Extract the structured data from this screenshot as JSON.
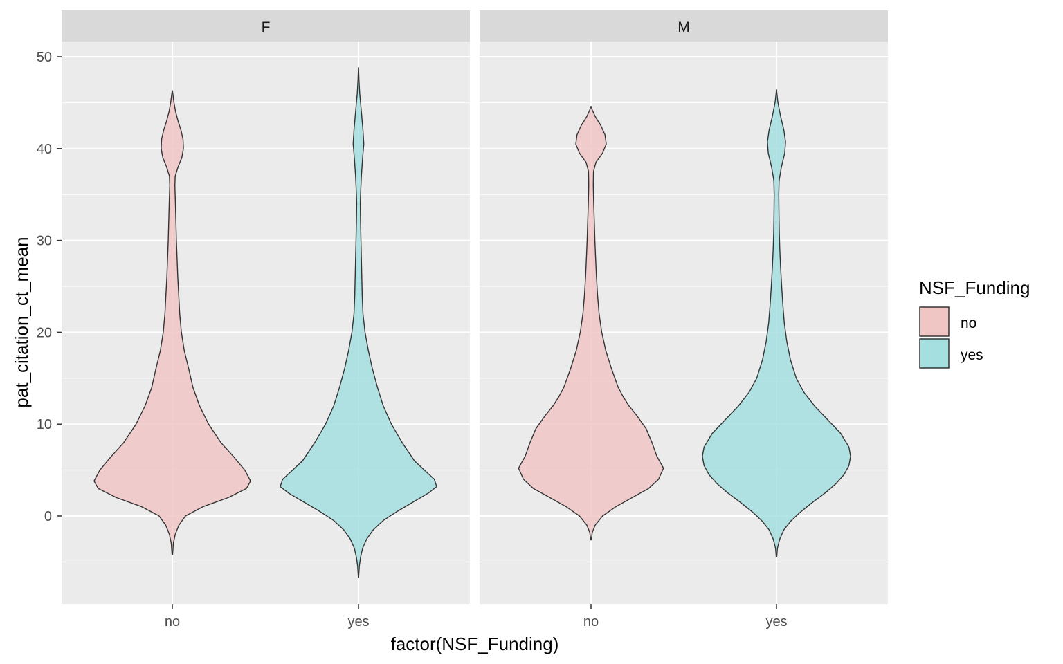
{
  "chart_data": {
    "type": "violin",
    "xlabel": "factor(NSF_Funding)",
    "ylabel": "pat_citation_ct_mean",
    "ylim": [
      -9.5,
      50
    ],
    "yticks": [
      0,
      10,
      20,
      30,
      40,
      50
    ],
    "categories": [
      "no",
      "yes"
    ],
    "facets": [
      "F",
      "M"
    ],
    "legend": {
      "title": "NSF_Funding",
      "position": "right",
      "entries": [
        {
          "label": "no",
          "color": "#F0C6C5"
        },
        {
          "label": "yes",
          "color": "#A6DFE0"
        }
      ]
    },
    "grid": true,
    "panel_background": "#EBEBEB",
    "strip_background": "#D9D9D9",
    "series": [
      {
        "facet": "F",
        "category": "no",
        "fill": "#F0C6C5",
        "profile": [
          [
            -4.2,
            0.003
          ],
          [
            -3.0,
            0.013
          ],
          [
            -2.0,
            0.035
          ],
          [
            -1.0,
            0.08
          ],
          [
            0,
            0.16
          ],
          [
            1,
            0.37
          ],
          [
            2,
            0.68
          ],
          [
            3,
            0.9
          ],
          [
            3.8,
            0.95
          ],
          [
            5,
            0.88
          ],
          [
            6.5,
            0.74
          ],
          [
            8,
            0.59
          ],
          [
            10,
            0.44
          ],
          [
            12,
            0.33
          ],
          [
            14,
            0.25
          ],
          [
            16,
            0.2
          ],
          [
            18,
            0.145
          ],
          [
            20,
            0.11
          ],
          [
            22,
            0.09
          ],
          [
            24,
            0.078
          ],
          [
            26,
            0.066
          ],
          [
            28,
            0.058
          ],
          [
            30,
            0.05
          ],
          [
            32,
            0.044
          ],
          [
            34,
            0.038
          ],
          [
            36,
            0.031
          ],
          [
            37,
            0.035
          ],
          [
            38,
            0.07
          ],
          [
            39,
            0.115
          ],
          [
            40,
            0.135
          ],
          [
            41,
            0.13
          ],
          [
            42,
            0.105
          ],
          [
            43,
            0.07
          ],
          [
            44,
            0.04
          ],
          [
            45,
            0.02
          ],
          [
            46,
            0.006
          ],
          [
            46.3,
            0.001
          ]
        ]
      },
      {
        "facet": "F",
        "category": "yes",
        "fill": "#A6DFE0",
        "profile": [
          [
            -6.7,
            0.002
          ],
          [
            -5.5,
            0.01
          ],
          [
            -4.5,
            0.025
          ],
          [
            -3.5,
            0.05
          ],
          [
            -2.5,
            0.1
          ],
          [
            -1.5,
            0.18
          ],
          [
            -0.5,
            0.3
          ],
          [
            0.5,
            0.47
          ],
          [
            1.5,
            0.66
          ],
          [
            2.5,
            0.85
          ],
          [
            3.2,
            0.95
          ],
          [
            4,
            0.92
          ],
          [
            5,
            0.8
          ],
          [
            6,
            0.68
          ],
          [
            8,
            0.53
          ],
          [
            10,
            0.4
          ],
          [
            12,
            0.3
          ],
          [
            14,
            0.23
          ],
          [
            16,
            0.17
          ],
          [
            18,
            0.12
          ],
          [
            20,
            0.08
          ],
          [
            22,
            0.055
          ],
          [
            24,
            0.045
          ],
          [
            26,
            0.04
          ],
          [
            28,
            0.035
          ],
          [
            30,
            0.03
          ],
          [
            32,
            0.025
          ],
          [
            34,
            0.022
          ],
          [
            35,
            0.025
          ],
          [
            37,
            0.035
          ],
          [
            39,
            0.05
          ],
          [
            40.5,
            0.065
          ],
          [
            42,
            0.055
          ],
          [
            44,
            0.035
          ],
          [
            46,
            0.015
          ],
          [
            47.5,
            0.006
          ],
          [
            48.8,
            0.001
          ]
        ]
      },
      {
        "facet": "M",
        "category": "no",
        "fill": "#F0C6C5",
        "profile": [
          [
            -2.6,
            0.003
          ],
          [
            -1.8,
            0.015
          ],
          [
            -1.0,
            0.05
          ],
          [
            0,
            0.14
          ],
          [
            1,
            0.3
          ],
          [
            2,
            0.5
          ],
          [
            3,
            0.7
          ],
          [
            4,
            0.82
          ],
          [
            5.2,
            0.88
          ],
          [
            6.5,
            0.8
          ],
          [
            8,
            0.74
          ],
          [
            9.5,
            0.67
          ],
          [
            11,
            0.55
          ],
          [
            12,
            0.46
          ],
          [
            13,
            0.39
          ],
          [
            14,
            0.33
          ],
          [
            16,
            0.25
          ],
          [
            18,
            0.18
          ],
          [
            20,
            0.13
          ],
          [
            22,
            0.098
          ],
          [
            24,
            0.08
          ],
          [
            26,
            0.066
          ],
          [
            28,
            0.056
          ],
          [
            30,
            0.047
          ],
          [
            32,
            0.04
          ],
          [
            34,
            0.033
          ],
          [
            36,
            0.028
          ],
          [
            37.5,
            0.03
          ],
          [
            38.5,
            0.06
          ],
          [
            39.5,
            0.14
          ],
          [
            40.5,
            0.185
          ],
          [
            41.5,
            0.17
          ],
          [
            42.5,
            0.12
          ],
          [
            43.5,
            0.05
          ],
          [
            44.2,
            0.015
          ],
          [
            44.6,
            0.001
          ]
        ]
      },
      {
        "facet": "M",
        "category": "yes",
        "fill": "#A6DFE0",
        "profile": [
          [
            -4.4,
            0.003
          ],
          [
            -3.5,
            0.012
          ],
          [
            -2.5,
            0.04
          ],
          [
            -1.5,
            0.09
          ],
          [
            -0.5,
            0.18
          ],
          [
            0.5,
            0.3
          ],
          [
            1.5,
            0.44
          ],
          [
            2.5,
            0.59
          ],
          [
            3.5,
            0.72
          ],
          [
            4.5,
            0.82
          ],
          [
            5.5,
            0.88
          ],
          [
            6.5,
            0.9
          ],
          [
            7.5,
            0.88
          ],
          [
            9,
            0.78
          ],
          [
            10.5,
            0.62
          ],
          [
            12,
            0.46
          ],
          [
            13.5,
            0.33
          ],
          [
            15,
            0.24
          ],
          [
            17,
            0.17
          ],
          [
            19,
            0.125
          ],
          [
            21,
            0.095
          ],
          [
            23,
            0.077
          ],
          [
            25,
            0.063
          ],
          [
            27,
            0.05
          ],
          [
            29,
            0.04
          ],
          [
            31,
            0.034
          ],
          [
            33,
            0.03
          ],
          [
            35,
            0.028
          ],
          [
            36.5,
            0.032
          ],
          [
            38,
            0.06
          ],
          [
            39.5,
            0.1
          ],
          [
            40.7,
            0.11
          ],
          [
            42,
            0.09
          ],
          [
            43.5,
            0.05
          ],
          [
            45,
            0.018
          ],
          [
            46,
            0.005
          ],
          [
            46.4,
            0.001
          ]
        ]
      }
    ]
  }
}
